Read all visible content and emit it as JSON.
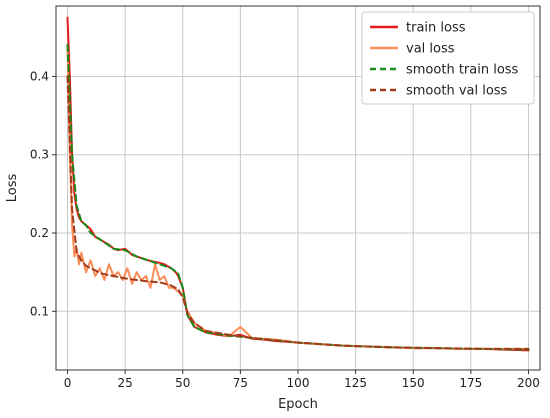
{
  "chart_data": {
    "type": "line",
    "title": "",
    "xlabel": "Epoch",
    "ylabel": "Loss",
    "xlim": [
      -5,
      205
    ],
    "ylim": [
      0.025,
      0.49
    ],
    "xticks": [
      0,
      25,
      50,
      75,
      100,
      125,
      150,
      175,
      200
    ],
    "yticks": [
      0.1,
      0.2,
      0.3,
      0.4
    ],
    "ytick_labels": [
      "0.1",
      "0.2",
      "0.3",
      "0.4"
    ],
    "grid": true,
    "legend_position": "top-right",
    "series": [
      {
        "name": "train loss",
        "color": "#e41a1c",
        "style": "solid",
        "x": [
          0,
          1,
          2,
          3,
          4,
          5,
          6,
          8,
          10,
          12,
          15,
          18,
          20,
          22,
          25,
          28,
          30,
          32,
          35,
          38,
          40,
          42,
          45,
          47,
          48,
          50,
          52,
          55,
          60,
          65,
          70,
          75,
          80,
          85,
          90,
          95,
          100,
          110,
          120,
          130,
          140,
          150,
          160,
          170,
          180,
          190,
          200
        ],
        "y": [
          0.475,
          0.4,
          0.3,
          0.25,
          0.23,
          0.22,
          0.215,
          0.21,
          0.205,
          0.195,
          0.19,
          0.185,
          0.18,
          0.178,
          0.18,
          0.172,
          0.17,
          0.168,
          0.165,
          0.163,
          0.162,
          0.16,
          0.155,
          0.15,
          0.145,
          0.13,
          0.095,
          0.08,
          0.073,
          0.07,
          0.068,
          0.07,
          0.065,
          0.064,
          0.062,
          0.061,
          0.06,
          0.058,
          0.056,
          0.055,
          0.054,
          0.053,
          0.053,
          0.052,
          0.052,
          0.051,
          0.05
        ]
      },
      {
        "name": "val loss",
        "color": "#fc8d59",
        "style": "solid",
        "x": [
          0,
          1,
          2,
          3,
          4,
          5,
          6,
          8,
          10,
          12,
          14,
          16,
          18,
          20,
          22,
          24,
          26,
          28,
          30,
          32,
          34,
          36,
          38,
          40,
          42,
          44,
          46,
          48,
          50,
          52,
          55,
          60,
          65,
          70,
          75,
          80,
          85,
          90,
          95,
          100,
          110,
          120,
          130,
          140,
          150,
          160,
          170,
          180,
          190,
          200
        ],
        "y": [
          0.44,
          0.3,
          0.21,
          0.17,
          0.18,
          0.16,
          0.175,
          0.15,
          0.165,
          0.145,
          0.155,
          0.14,
          0.16,
          0.145,
          0.15,
          0.14,
          0.155,
          0.135,
          0.15,
          0.14,
          0.145,
          0.13,
          0.16,
          0.14,
          0.145,
          0.13,
          0.13,
          0.125,
          0.12,
          0.1,
          0.085,
          0.075,
          0.072,
          0.068,
          0.08,
          0.066,
          0.065,
          0.064,
          0.062,
          0.06,
          0.058,
          0.056,
          0.055,
          0.054,
          0.053,
          0.053,
          0.052,
          0.052,
          0.052,
          0.052
        ]
      },
      {
        "name": "smooth train loss",
        "color": "#1a8a1a",
        "style": "dashed",
        "x": [
          0,
          2,
          4,
          6,
          8,
          10,
          15,
          20,
          25,
          30,
          35,
          40,
          45,
          48,
          50,
          52,
          55,
          60,
          70,
          80,
          90,
          100,
          120,
          140,
          160,
          180,
          200
        ],
        "y": [
          0.44,
          0.3,
          0.235,
          0.215,
          0.21,
          0.2,
          0.19,
          0.18,
          0.178,
          0.17,
          0.165,
          0.16,
          0.155,
          0.148,
          0.13,
          0.095,
          0.08,
          0.073,
          0.069,
          0.066,
          0.063,
          0.06,
          0.056,
          0.054,
          0.053,
          0.052,
          0.051
        ]
      },
      {
        "name": "smooth val loss",
        "color": "#a33a1a",
        "style": "dashed",
        "x": [
          0,
          2,
          4,
          6,
          8,
          10,
          15,
          20,
          25,
          30,
          35,
          40,
          45,
          48,
          50,
          52,
          55,
          60,
          70,
          80,
          90,
          100,
          120,
          140,
          160,
          180,
          200
        ],
        "y": [
          0.4,
          0.23,
          0.175,
          0.165,
          0.158,
          0.155,
          0.148,
          0.145,
          0.142,
          0.14,
          0.138,
          0.137,
          0.133,
          0.128,
          0.118,
          0.098,
          0.085,
          0.075,
          0.07,
          0.066,
          0.063,
          0.06,
          0.056,
          0.054,
          0.053,
          0.052,
          0.052
        ]
      }
    ]
  }
}
